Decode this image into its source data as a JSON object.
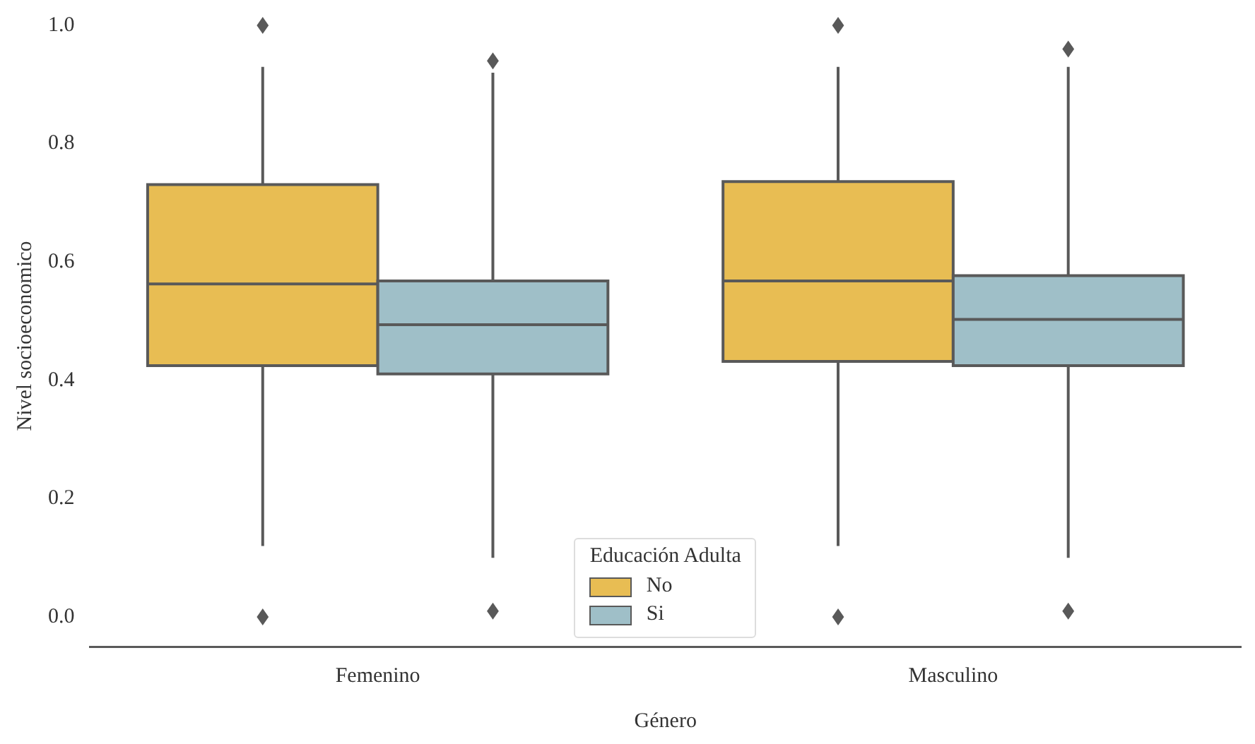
{
  "chart_data": {
    "type": "box",
    "xlabel": "Género",
    "ylabel": "Nivel socioeconomico",
    "legend_title": "Educación Adulta",
    "legend": "bottom",
    "marker": "diamond",
    "categories": [
      "Femenino",
      "Masculino"
    ],
    "ylim": [
      -0.05,
      1.0
    ],
    "yticks": [
      {
        "value": 0,
        "label": "0.0"
      },
      {
        "value": 0.2,
        "label": "0.2"
      },
      {
        "value": 0.4,
        "label": "0.4"
      },
      {
        "value": 0.6,
        "label": "0.6"
      },
      {
        "value": 0.8,
        "label": "0.8"
      },
      {
        "value": 1,
        "label": "1.0"
      }
    ],
    "series": [
      {
        "name": "No",
        "color": "#e8bd53",
        "boxes": [
          {
            "low": 0.12,
            "q1": 0.425,
            "median": 0.563,
            "q3": 0.731,
            "high": 0.93,
            "outliers": [
              0.0,
              1.0
            ]
          },
          {
            "low": 0.12,
            "q1": 0.432,
            "median": 0.568,
            "q3": 0.736,
            "high": 0.93,
            "outliers": [
              0.0,
              1.0
            ]
          }
        ]
      },
      {
        "name": "Si",
        "color": "#9fbfc8",
        "boxes": [
          {
            "low": 0.1,
            "q1": 0.411,
            "median": 0.494,
            "q3": 0.568,
            "high": 0.92,
            "outliers": [
              0.01,
              0.94
            ]
          },
          {
            "low": 0.1,
            "q1": 0.425,
            "median": 0.503,
            "q3": 0.577,
            "high": 0.93,
            "outliers": [
              0.01,
              0.96
            ]
          }
        ]
      }
    ]
  }
}
